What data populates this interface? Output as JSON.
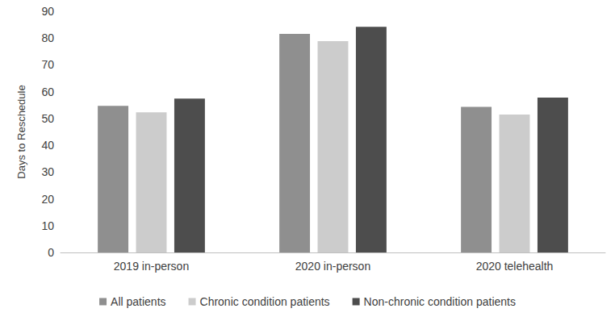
{
  "chart_data": {
    "type": "bar",
    "y_label": "Days to Reschedule",
    "categories": [
      "2019 in-person",
      "2020 in-person",
      "2020 telehealth"
    ],
    "series": [
      {
        "name": "All patients",
        "color": "#8f8f8f",
        "values": [
          54.7,
          81.6,
          54.3
        ]
      },
      {
        "name": "Chronic condition patients",
        "color": "#cccccc",
        "values": [
          52.3,
          78.9,
          51.5
        ]
      },
      {
        "name": "Non-chronic condition patients",
        "color": "#4d4d4d",
        "values": [
          57.4,
          84.2,
          57.8
        ]
      }
    ],
    "ylim": [
      0,
      90
    ],
    "yticks": [
      0,
      10,
      20,
      30,
      40,
      50,
      60,
      70,
      80,
      90
    ],
    "grid": false,
    "legend": "bottom"
  }
}
